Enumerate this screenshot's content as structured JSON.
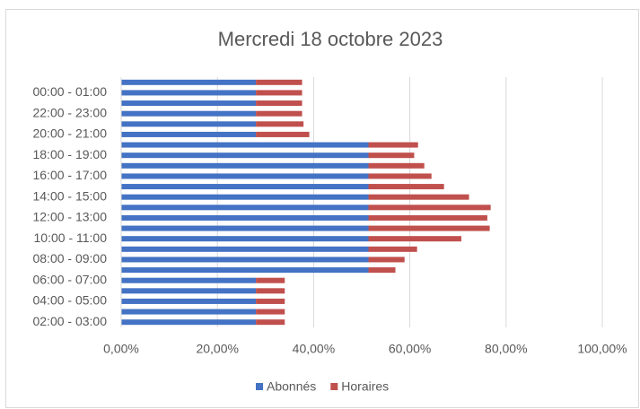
{
  "chart_data": {
    "type": "stacked_barh",
    "title": "Mercredi 18 octobre 2023",
    "categories": [
      "02:00 - 03:00",
      null,
      "04:00 - 05:00",
      null,
      "06:00 - 07:00",
      null,
      "08:00 - 09:00",
      null,
      "10:00 - 11:00",
      null,
      "12:00 - 13:00",
      null,
      "14:00 - 15:00",
      null,
      "16:00 - 17:00",
      null,
      "18:00 - 19:00",
      null,
      "20:00 - 21:00",
      null,
      "22:00 - 23:00",
      null,
      "00:00 - 01:00",
      null
    ],
    "series": [
      {
        "name": "Abonnés",
        "color": "#4472c4",
        "values": [
          28,
          28,
          28,
          28,
          28,
          51.4,
          51.4,
          51.4,
          51.4,
          51.4,
          51.4,
          51.4,
          51.4,
          51.4,
          51.4,
          51.4,
          51.4,
          51.4,
          28,
          28,
          28,
          28,
          28,
          28
        ]
      },
      {
        "name": "Horaires",
        "color": "#c0504d",
        "values": [
          6,
          6,
          6,
          6,
          6,
          5.6,
          7.5,
          10.1,
          19.3,
          25.2,
          24.7,
          25.4,
          20.9,
          15.7,
          13.1,
          11.6,
          9.5,
          10.3,
          11.1,
          9.9,
          9.6,
          9.6,
          9.6,
          9.6
        ]
      }
    ],
    "xlim": [
      0,
      100
    ],
    "xticks": [
      {
        "value": 0,
        "label": "0,00%"
      },
      {
        "value": 20,
        "label": "20,00%"
      },
      {
        "value": 40,
        "label": "40,00%"
      },
      {
        "value": 60,
        "label": "60,00%"
      },
      {
        "value": 80,
        "label": "80,00%"
      },
      {
        "value": 100,
        "label": "100,00%"
      }
    ],
    "grid": true,
    "legend": "bottom"
  }
}
